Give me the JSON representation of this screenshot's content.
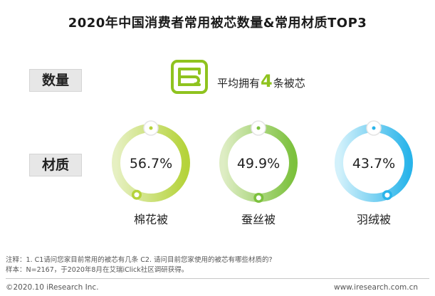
{
  "chart_data": {
    "type": "donut",
    "title": "2020年中国消费者常用被芯数量&常用材质TOP3",
    "categories": [
      "棉花被",
      "蚕丝被",
      "羽绒被"
    ],
    "values": [
      56.7,
      49.9,
      43.7
    ],
    "value_labels": [
      "56.7%",
      "49.9%",
      "43.7%"
    ],
    "unit": "%",
    "series_colors": [
      {
        "start": "#e6f0c2",
        "end": "#b5d33a"
      },
      {
        "start": "#deedc4",
        "end": "#7cc13d"
      },
      {
        "start": "#d3f1fb",
        "end": "#29b4ea"
      }
    ]
  },
  "labels": {
    "quantity": "数量",
    "material": "材质"
  },
  "quantity": {
    "prefix": "平均拥有",
    "number": "4",
    "suffix": "条被芯"
  },
  "icons": {
    "quantity": "quilt-icon"
  },
  "notes": {
    "line1": "注释：1. C1请问您家目前常用的被芯有几条 C2. 请问目前您家使用的被芯有哪些材质的?",
    "line2": "样本：N=2167，于2020年8月在艾瑞iClick社区调研获得。"
  },
  "footer": {
    "left": "©2020.10 iResearch Inc.",
    "right": "www.iresearch.com.cn"
  }
}
